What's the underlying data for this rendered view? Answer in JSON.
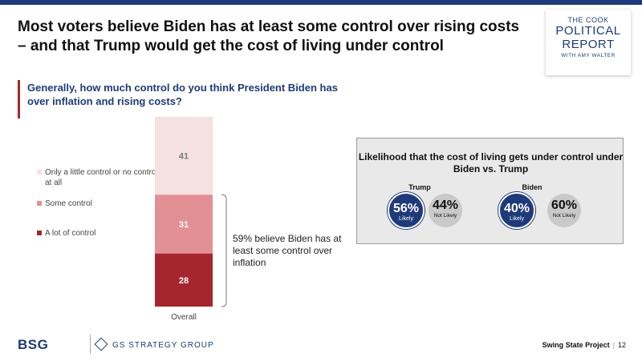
{
  "title": "Most voters believe Biden has at least some control over rising costs – and that Trump would get the cost of living under control",
  "logo": {
    "line1": "THE COOK",
    "line2": "POLITICAL",
    "line3": "REPORT",
    "line4": "WITH AMY WALTER"
  },
  "question": "Generally, how much control do you think President Biden has over inflation and rising costs?",
  "legend": [
    {
      "label": "Only a little control or no control at all",
      "color": "#f5e0e2"
    },
    {
      "label": "Some control",
      "color": "#e39095"
    },
    {
      "label": "A lot of control",
      "color": "#a6262d"
    }
  ],
  "annotation": "59% believe Biden has at least some control over inflation",
  "chart_data": {
    "type": "bar",
    "stacked": true,
    "categories": [
      "Overall"
    ],
    "series": [
      {
        "name": "A lot of control",
        "values": [
          28
        ],
        "color": "#a6262d",
        "label_color": "#ffffff"
      },
      {
        "name": "Some control",
        "values": [
          31
        ],
        "color": "#e39095",
        "label_color": "#ffffff"
      },
      {
        "name": "Only a little control or no control at all",
        "values": [
          41
        ],
        "color": "#f5e0e2",
        "label_color": "#7a7a7a"
      }
    ],
    "ylim": [
      0,
      100
    ]
  },
  "panel": {
    "title": "Likelihood that the cost of living gets under control under Biden vs. Trump",
    "groups": [
      {
        "name": "Trump",
        "likely": "56%",
        "likely_label": "Likely",
        "not_likely": "44%",
        "not_likely_label": "Not Likely"
      },
      {
        "name": "Biden",
        "likely": "40%",
        "likely_label": "Likely",
        "not_likely": "60%",
        "not_likely_label": "Not Likely"
      }
    ]
  },
  "footer": {
    "bsg": "BSG",
    "gs": "GS STRATEGY GROUP",
    "project": "Swing State Project",
    "page": "12"
  }
}
